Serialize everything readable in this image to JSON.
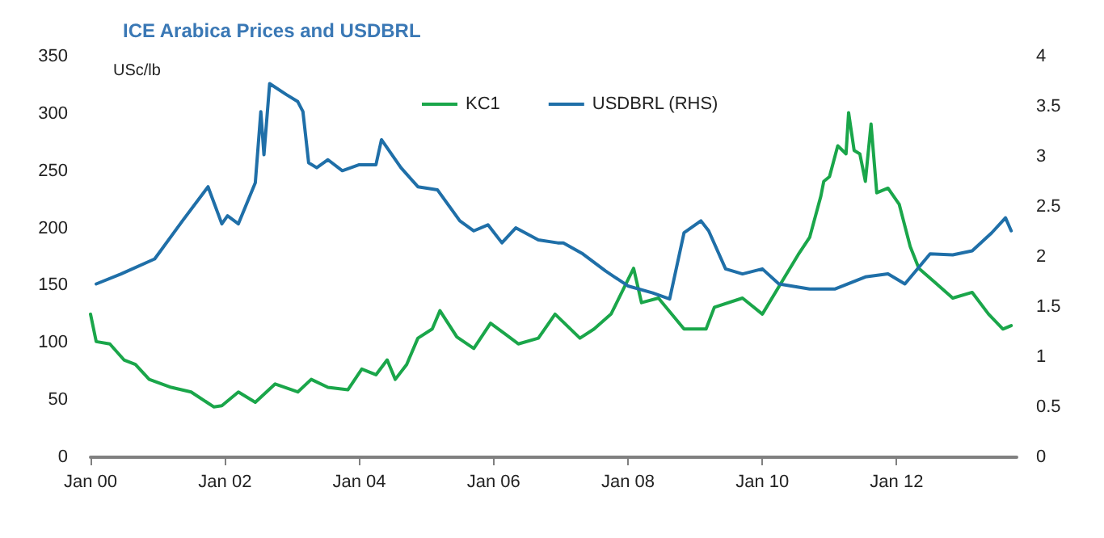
{
  "chart_data": {
    "type": "line",
    "title": "ICE Arabica Prices and USDBRL",
    "ylabel": "USc/lb",
    "xlim": [
      "2000-01-01",
      "2013-10-15"
    ],
    "xticks": [
      {
        "value": "2000-01-01",
        "label": "Jan 00"
      },
      {
        "value": "2002-01-01",
        "label": "Jan 02"
      },
      {
        "value": "2004-01-01",
        "label": "Jan 04"
      },
      {
        "value": "2006-01-01",
        "label": "Jan 06"
      },
      {
        "value": "2008-01-01",
        "label": "Jan 08"
      },
      {
        "value": "2010-01-01",
        "label": "Jan 10"
      },
      {
        "value": "2012-01-01",
        "label": "Jan 12"
      }
    ],
    "ylim": [
      0,
      350
    ],
    "yticks": [
      0,
      50,
      100,
      150,
      200,
      250,
      300,
      350
    ],
    "y2lim": [
      0,
      4
    ],
    "y2ticks": [
      0,
      0.5,
      1,
      1.5,
      2,
      2.5,
      3,
      3.5,
      4
    ],
    "legend": "top",
    "grid": false,
    "series": [
      {
        "name": "KC1",
        "color": "#1aa64a",
        "x": [
          "2000-01-01",
          "2000-02-01",
          "2000-04-15",
          "2000-07-01",
          "2000-09-01",
          "2000-11-15",
          "2001-03-15",
          "2001-07-01",
          "2001-11-01",
          "2001-12-15",
          "2002-03-15",
          "2002-06-15",
          "2002-10-01",
          "2003-02-01",
          "2003-04-15",
          "2003-07-15",
          "2003-11-01",
          "2004-01-15",
          "2004-04-01",
          "2004-06-01",
          "2004-07-15",
          "2004-09-15",
          "2004-11-15",
          "2005-02-01",
          "2005-03-15",
          "2005-06-15",
          "2005-09-15",
          "2005-12-15",
          "2006-03-01",
          "2006-05-15",
          "2006-09-01",
          "2006-12-01",
          "2007-04-15",
          "2007-07-01",
          "2007-10-01",
          "2008-02-01",
          "2008-03-15",
          "2008-06-15",
          "2008-11-01",
          "2009-03-01",
          "2009-04-15",
          "2009-09-15",
          "2010-01-01",
          "2010-05-01",
          "2010-07-15",
          "2010-09-15",
          "2010-11-15",
          "2010-12-01",
          "2011-01-01",
          "2011-02-15",
          "2011-04-01",
          "2011-04-15",
          "2011-05-15",
          "2011-06-15",
          "2011-07-15",
          "2011-08-15",
          "2011-09-15",
          "2011-11-15",
          "2012-01-15",
          "2012-03-15",
          "2012-05-01",
          "2012-08-01",
          "2012-11-01",
          "2013-02-15",
          "2013-05-15",
          "2013-08-01",
          "2013-09-15"
        ],
        "values": [
          125,
          101,
          99,
          85,
          81,
          68,
          61,
          57,
          44,
          45,
          57,
          48,
          64,
          57,
          68,
          61,
          59,
          77,
          72,
          85,
          68,
          81,
          104,
          112,
          128,
          105,
          95,
          117,
          108,
          99,
          104,
          125,
          104,
          112,
          125,
          165,
          135,
          139,
          112,
          112,
          131,
          139,
          125,
          157,
          177,
          192,
          228,
          241,
          245,
          272,
          265,
          301,
          268,
          265,
          241,
          291,
          231,
          235,
          221,
          184,
          165,
          152,
          139,
          144,
          125,
          112,
          115
        ]
      },
      {
        "name": "USDBRL (RHS)",
        "color": "#1f6fa8",
        "axis": "y2",
        "x": [
          "2000-02-01",
          "2000-06-15",
          "2000-12-15",
          "2001-05-15",
          "2001-10-01",
          "2001-12-15",
          "2002-01-15",
          "2002-03-15",
          "2002-06-15",
          "2002-07-15",
          "2002-08-01",
          "2002-09-01",
          "2002-12-01",
          "2003-02-01",
          "2003-03-01",
          "2003-04-01",
          "2003-05-15",
          "2003-07-15",
          "2003-10-01",
          "2004-01-01",
          "2004-04-01",
          "2004-05-01",
          "2004-08-15",
          "2004-11-15",
          "2005-03-01",
          "2005-07-01",
          "2005-09-15",
          "2005-12-01",
          "2006-02-15",
          "2006-05-01",
          "2006-09-01",
          "2006-12-15",
          "2007-01-15",
          "2007-05-01",
          "2007-09-01",
          "2008-01-01",
          "2008-05-15",
          "2008-08-15",
          "2008-11-01",
          "2009-02-01",
          "2009-03-15",
          "2009-06-15",
          "2009-09-15",
          "2010-01-01",
          "2010-04-01",
          "2010-09-15",
          "2011-02-01",
          "2011-07-15",
          "2011-11-15",
          "2012-02-15",
          "2012-07-01",
          "2012-11-01",
          "2013-02-15",
          "2013-06-01",
          "2013-08-15",
          "2013-09-15"
        ],
        "values": [
          1.73,
          1.83,
          1.98,
          2.36,
          2.7,
          2.33,
          2.41,
          2.33,
          2.74,
          3.45,
          3.02,
          3.73,
          3.62,
          3.55,
          3.45,
          2.94,
          2.89,
          2.97,
          2.86,
          2.92,
          2.92,
          3.17,
          2.89,
          2.7,
          2.67,
          2.36,
          2.26,
          2.32,
          2.14,
          2.29,
          2.17,
          2.14,
          2.14,
          2.03,
          1.86,
          1.71,
          1.64,
          1.58,
          2.24,
          2.36,
          2.26,
          1.88,
          1.83,
          1.88,
          1.73,
          1.68,
          1.68,
          1.8,
          1.83,
          1.73,
          2.03,
          2.02,
          2.06,
          2.24,
          2.39,
          2.26
        ]
      }
    ]
  }
}
